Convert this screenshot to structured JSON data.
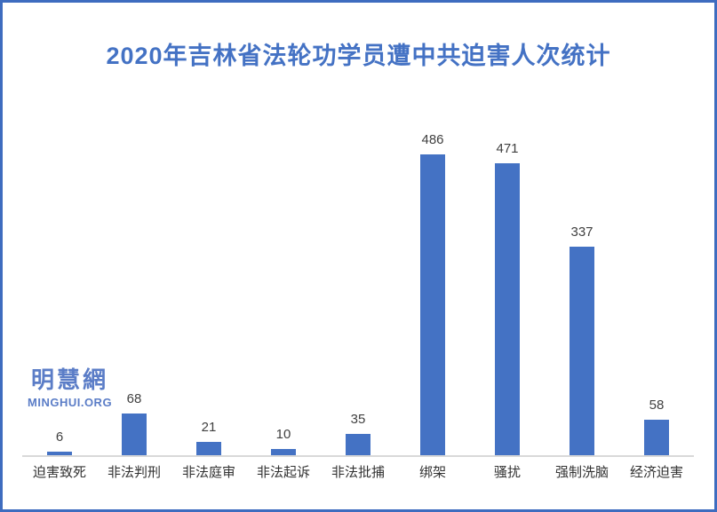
{
  "title": {
    "text": "2020年吉林省法轮功学员遭中共迫害人次统计",
    "color": "#4472c4"
  },
  "watermark": {
    "cjk": "明慧網",
    "latin": "MINGHUI.ORG",
    "color": "#5b7dc7"
  },
  "colors": {
    "bar": "#4472c4",
    "frame_border": "#3e6cbf",
    "axis_line": "#d9d9d9",
    "value_label": "#404040",
    "category_label": "#333333",
    "background": "#ffffff"
  },
  "chart_data": {
    "type": "bar",
    "title": "2020年吉林省法轮功学员遭中共迫害人次统计",
    "categories": [
      "迫害致死",
      "非法判刑",
      "非法庭审",
      "非法起诉",
      "非法批捕",
      "绑架",
      "骚扰",
      "强制洗脑",
      "经济迫害"
    ],
    "values": [
      6,
      68,
      21,
      10,
      35,
      486,
      471,
      337,
      58
    ],
    "xlabel": "",
    "ylabel": "",
    "ylim": [
      0,
      486
    ],
    "grid": false,
    "legend": false,
    "data_labels": true,
    "bar_color": "#4472c4"
  }
}
